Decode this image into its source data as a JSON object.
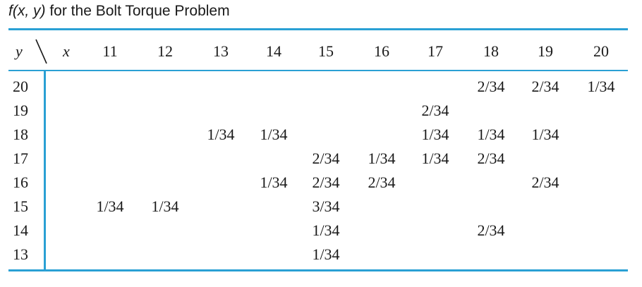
{
  "caption": {
    "fx": "f(x, y)",
    "rest": "for the Bolt Torque Problem"
  },
  "header": {
    "y_label": "y",
    "x_label": "x",
    "x_values": [
      "11",
      "12",
      "13",
      "14",
      "15",
      "16",
      "17",
      "18",
      "19",
      "20"
    ]
  },
  "rows": [
    {
      "y": "20",
      "cells": [
        "",
        "",
        "",
        "",
        "",
        "",
        "",
        "2/34",
        "2/34",
        "1/34"
      ]
    },
    {
      "y": "19",
      "cells": [
        "",
        "",
        "",
        "",
        "",
        "",
        "2/34",
        "",
        "",
        ""
      ]
    },
    {
      "y": "18",
      "cells": [
        "",
        "",
        "1/34",
        "1/34",
        "",
        "",
        "1/34",
        "1/34",
        "1/34",
        ""
      ]
    },
    {
      "y": "17",
      "cells": [
        "",
        "",
        "",
        "",
        "2/34",
        "1/34",
        "1/34",
        "2/34",
        "",
        ""
      ]
    },
    {
      "y": "16",
      "cells": [
        "",
        "",
        "",
        "1/34",
        "2/34",
        "2/34",
        "",
        "",
        "2/34",
        ""
      ]
    },
    {
      "y": "15",
      "cells": [
        "1/34",
        "1/34",
        "",
        "",
        "3/34",
        "",
        "",
        "",
        "",
        ""
      ]
    },
    {
      "y": "14",
      "cells": [
        "",
        "",
        "",
        "",
        "1/34",
        "",
        "",
        "2/34",
        "",
        ""
      ]
    },
    {
      "y": "13",
      "cells": [
        "",
        "",
        "",
        "",
        "1/34",
        "",
        "",
        "",
        "",
        ""
      ]
    }
  ]
}
